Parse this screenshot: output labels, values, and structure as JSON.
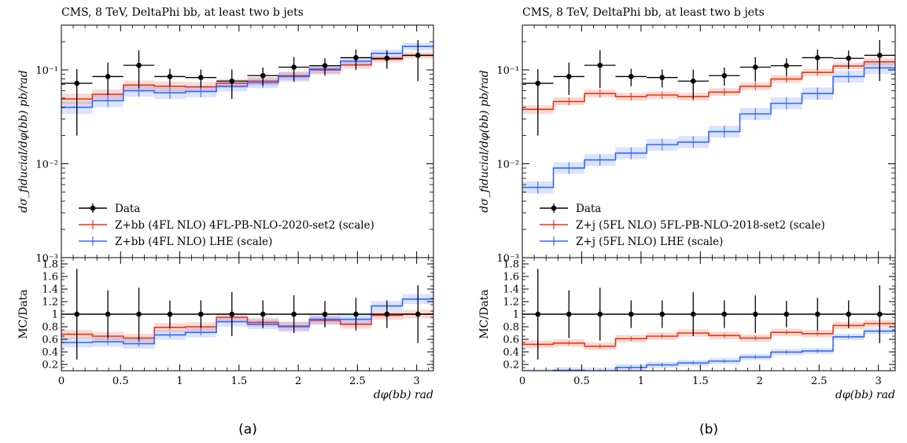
{
  "panels": [
    {
      "caption": "(a)",
      "title": "CMS, 8 TeV, DeltaPhi bb, at least two b jets",
      "legend": [
        {
          "label": "Data",
          "color": "#000000",
          "type": "data"
        },
        {
          "label": "Z+bb (4FL NLO) 4FL-PB-NLO-2020-set2 (scale)",
          "color": "#ee3311",
          "type": "mc"
        },
        {
          "label": "Z+bb (4FL NLO) LHE (scale)",
          "color": "#3366ff",
          "type": "mc"
        }
      ],
      "ylabel_main": "dσ_fiducial/dφ(bb) pb/rad",
      "ylabel_ratio": "MC/Data",
      "xlabel": "dφ(bb) rad"
    },
    {
      "caption": "(b)",
      "title": "CMS, 8 TeV, DeltaPhi bb, at least two b jets",
      "legend": [
        {
          "label": "Data",
          "color": "#000000",
          "type": "data"
        },
        {
          "label": "Z+j (5FL NLO) 5FL-PB-NLO-2018-set2 (scale)",
          "color": "#ee3311",
          "type": "mc"
        },
        {
          "label": "Z+j (5FL NLO) LHE (scale)",
          "color": "#3366ff",
          "type": "mc"
        }
      ],
      "ylabel_main": "dσ_fiducial/dφ(bb) pb/rad",
      "ylabel_ratio": "MC/Data",
      "xlabel": "dφ(bb) rad"
    }
  ],
  "chart_data": [
    {
      "type": "line",
      "title": "CMS, 8 TeV, DeltaPhi bb, at least two b jets",
      "xlabel": "dφ(bb) rad",
      "ylabel": "dσ_fiducial/dφ(bb) pb/rad",
      "ylabel_ratio": "MC/Data",
      "xlim": [
        0,
        3.1416
      ],
      "ylim": [
        0.001,
        0.3
      ],
      "yscale": "log",
      "ratio_ylim": [
        0.1,
        1.9
      ],
      "x_ticks": [
        "0",
        "0.5",
        "1",
        "1.5",
        "2",
        "2.5",
        "3"
      ],
      "y_ticks": [
        "10⁻³",
        "10⁻²",
        "10⁻¹"
      ],
      "ratio_ticks": [
        "0.2",
        "0.4",
        "0.6",
        "0.8",
        "1",
        "1.2",
        "1.4",
        "1.6",
        "1.8"
      ],
      "bin_edges": [
        0,
        0.2618,
        0.5236,
        0.7854,
        1.0472,
        1.309,
        1.5708,
        1.8326,
        2.0944,
        2.3562,
        2.618,
        2.8798,
        3.1416
      ],
      "data": {
        "name": "Data",
        "values": [
          0.072,
          0.085,
          0.112,
          0.085,
          0.083,
          0.076,
          0.087,
          0.107,
          0.111,
          0.135,
          0.133,
          0.143
        ],
        "err_low": [
          0.052,
          0.031,
          0.048,
          0.018,
          0.018,
          0.027,
          0.019,
          0.032,
          0.024,
          0.035,
          0.03,
          0.067
        ],
        "err_high": [
          0.03,
          0.035,
          0.05,
          0.018,
          0.018,
          0.025,
          0.019,
          0.03,
          0.022,
          0.03,
          0.028,
          0.065
        ]
      },
      "series": [
        {
          "name": "Z+bb (4FL NLO) 4FL-PB-NLO-2020-set2 (scale)",
          "color": "#ee3311",
          "values": [
            0.049,
            0.055,
            0.069,
            0.067,
            0.066,
            0.072,
            0.076,
            0.087,
            0.1,
            0.113,
            0.13,
            0.143
          ],
          "band_low": [
            0.043,
            0.049,
            0.061,
            0.059,
            0.058,
            0.064,
            0.068,
            0.078,
            0.09,
            0.103,
            0.12,
            0.132
          ],
          "band_high": [
            0.056,
            0.062,
            0.077,
            0.075,
            0.074,
            0.08,
            0.084,
            0.096,
            0.11,
            0.123,
            0.141,
            0.155
          ]
        },
        {
          "name": "Z+bb (4FL NLO) LHE (scale)",
          "color": "#3366ff",
          "values": [
            0.04,
            0.047,
            0.06,
            0.057,
            0.059,
            0.067,
            0.073,
            0.085,
            0.102,
            0.124,
            0.15,
            0.178
          ],
          "band_low": [
            0.034,
            0.04,
            0.052,
            0.049,
            0.051,
            0.059,
            0.064,
            0.075,
            0.091,
            0.112,
            0.136,
            0.161
          ],
          "band_high": [
            0.046,
            0.054,
            0.068,
            0.065,
            0.067,
            0.075,
            0.082,
            0.095,
            0.113,
            0.136,
            0.164,
            0.195
          ]
        }
      ],
      "ratio": [
        {
          "name": "Z+bb (4FL NLO) 4FL-PB-NLO-2020-set2 (scale)",
          "color": "#ee3311",
          "values": [
            0.68,
            0.65,
            0.62,
            0.79,
            0.8,
            0.95,
            0.87,
            0.81,
            0.9,
            0.84,
            0.98,
            1.0
          ],
          "band": 0.07
        },
        {
          "name": "Z+bb (4FL NLO) LHE (scale)",
          "color": "#3366ff",
          "values": [
            0.55,
            0.56,
            0.53,
            0.67,
            0.71,
            0.88,
            0.84,
            0.8,
            0.92,
            0.92,
            1.13,
            1.24
          ],
          "band": 0.08
        }
      ],
      "ratio_data_err": [
        0.72,
        0.38,
        0.42,
        0.22,
        0.22,
        0.35,
        0.22,
        0.3,
        0.21,
        0.26,
        0.22,
        0.46
      ]
    },
    {
      "type": "line",
      "title": "CMS, 8 TeV, DeltaPhi bb, at least two b jets",
      "xlabel": "dφ(bb) rad",
      "ylabel": "dσ_fiducial/dφ(bb) pb/rad",
      "ylabel_ratio": "MC/Data",
      "xlim": [
        0,
        3.1416
      ],
      "ylim": [
        0.001,
        0.3
      ],
      "yscale": "log",
      "ratio_ylim": [
        0.1,
        1.9
      ],
      "x_ticks": [
        "0",
        "0.5",
        "1",
        "1.5",
        "2",
        "2.5",
        "3"
      ],
      "y_ticks": [
        "10⁻³",
        "10⁻²",
        "10⁻¹"
      ],
      "ratio_ticks": [
        "0.2",
        "0.4",
        "0.6",
        "0.8",
        "1",
        "1.2",
        "1.4",
        "1.6",
        "1.8"
      ],
      "bin_edges": [
        0,
        0.2618,
        0.5236,
        0.7854,
        1.0472,
        1.309,
        1.5708,
        1.8326,
        2.0944,
        2.3562,
        2.618,
        2.8798,
        3.1416
      ],
      "data": {
        "name": "Data",
        "values": [
          0.072,
          0.085,
          0.112,
          0.085,
          0.083,
          0.076,
          0.087,
          0.107,
          0.111,
          0.135,
          0.133,
          0.143
        ],
        "err_low": [
          0.052,
          0.031,
          0.048,
          0.018,
          0.018,
          0.027,
          0.019,
          0.032,
          0.024,
          0.035,
          0.03,
          0.067
        ],
        "err_high": [
          0.03,
          0.035,
          0.05,
          0.018,
          0.018,
          0.025,
          0.019,
          0.03,
          0.022,
          0.03,
          0.028,
          0.065
        ]
      },
      "series": [
        {
          "name": "Z+j (5FL NLO) 5FL-PB-NLO-2018-set2 (scale)",
          "color": "#ee3311",
          "values": [
            0.038,
            0.046,
            0.056,
            0.052,
            0.054,
            0.052,
            0.058,
            0.067,
            0.08,
            0.094,
            0.11,
            0.122
          ],
          "band_low": [
            0.034,
            0.042,
            0.051,
            0.047,
            0.049,
            0.047,
            0.053,
            0.061,
            0.073,
            0.086,
            0.101,
            0.111
          ],
          "band_high": [
            0.042,
            0.051,
            0.062,
            0.057,
            0.059,
            0.057,
            0.064,
            0.074,
            0.088,
            0.103,
            0.12,
            0.134
          ]
        },
        {
          "name": "Z+j (5FL NLO) LHE (scale)",
          "color": "#3366ff",
          "values": [
            0.0056,
            0.009,
            0.011,
            0.013,
            0.016,
            0.017,
            0.022,
            0.034,
            0.044,
            0.056,
            0.085,
            0.105
          ],
          "band_low": [
            0.0048,
            0.0078,
            0.0095,
            0.0112,
            0.0138,
            0.0147,
            0.019,
            0.0293,
            0.038,
            0.048,
            0.073,
            0.09
          ],
          "band_high": [
            0.0065,
            0.0104,
            0.0127,
            0.015,
            0.0185,
            0.0197,
            0.0254,
            0.0393,
            0.051,
            0.065,
            0.098,
            0.121
          ]
        }
      ],
      "ratio": [
        {
          "name": "Z+j (5FL NLO) 5FL-PB-NLO-2018-set2 (scale)",
          "color": "#ee3311",
          "values": [
            0.52,
            0.54,
            0.49,
            0.61,
            0.65,
            0.7,
            0.66,
            0.62,
            0.71,
            0.69,
            0.82,
            0.85
          ],
          "band": 0.06
        },
        {
          "name": "Z+j (5FL NLO) LHE (scale)",
          "color": "#3366ff",
          "values": [
            0.077,
            0.105,
            0.098,
            0.153,
            0.193,
            0.224,
            0.253,
            0.318,
            0.396,
            0.415,
            0.64,
            0.73
          ],
          "band": 0.05
        }
      ],
      "ratio_data_err": [
        0.72,
        0.38,
        0.42,
        0.22,
        0.22,
        0.35,
        0.22,
        0.3,
        0.21,
        0.26,
        0.22,
        0.46
      ]
    }
  ]
}
